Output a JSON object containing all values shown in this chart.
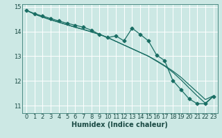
{
  "title": "",
  "xlabel": "Humidex (Indice chaleur)",
  "bg_color": "#cce8e4",
  "grid_color": "#ffffff",
  "line_color": "#1a6e64",
  "xlim": [
    -0.5,
    23.5
  ],
  "ylim": [
    10.7,
    15.1
  ],
  "yticks": [
    11,
    12,
    13,
    14,
    15
  ],
  "xticks": [
    0,
    1,
    2,
    3,
    4,
    5,
    6,
    7,
    8,
    9,
    10,
    11,
    12,
    13,
    14,
    15,
    16,
    17,
    18,
    19,
    20,
    21,
    22,
    23
  ],
  "series1_x": [
    0,
    1,
    2,
    3,
    4,
    5,
    6,
    7,
    8,
    9,
    10,
    11,
    12,
    13,
    14,
    15,
    16,
    17,
    18,
    19,
    20,
    21,
    22,
    23
  ],
  "series1_y": [
    14.85,
    14.72,
    14.62,
    14.52,
    14.42,
    14.33,
    14.25,
    14.17,
    14.05,
    13.88,
    13.75,
    13.82,
    13.62,
    14.13,
    13.88,
    13.62,
    13.05,
    12.82,
    12.02,
    11.65,
    11.28,
    11.08,
    11.08,
    11.38
  ],
  "series2_x": [
    0,
    1,
    2,
    3,
    4,
    5,
    6,
    7,
    8,
    9,
    10,
    11,
    12,
    13,
    14,
    15,
    16,
    17,
    18,
    19,
    20,
    21,
    22,
    23
  ],
  "series2_y": [
    14.85,
    14.7,
    14.58,
    14.47,
    14.37,
    14.27,
    14.17,
    14.08,
    13.98,
    13.88,
    13.75,
    13.6,
    13.45,
    13.3,
    13.15,
    13.0,
    12.82,
    12.62,
    12.4,
    12.15,
    11.85,
    11.55,
    11.25,
    11.4
  ],
  "series3_x": [
    0,
    1,
    2,
    3,
    4,
    5,
    6,
    7,
    8,
    9,
    10,
    11,
    12,
    13,
    14,
    15,
    16,
    17,
    18,
    19,
    20,
    21,
    22,
    23
  ],
  "series3_y": [
    14.85,
    14.7,
    14.58,
    14.47,
    14.37,
    14.27,
    14.17,
    14.08,
    13.98,
    13.88,
    13.75,
    13.6,
    13.45,
    13.3,
    13.15,
    13.0,
    12.8,
    12.6,
    12.35,
    12.05,
    11.72,
    11.4,
    11.1,
    11.4
  ],
  "marker_size": 2.5,
  "linewidth": 0.9,
  "font_size_label": 7,
  "font_size_tick": 6,
  "spine_color": "#4a8a82"
}
